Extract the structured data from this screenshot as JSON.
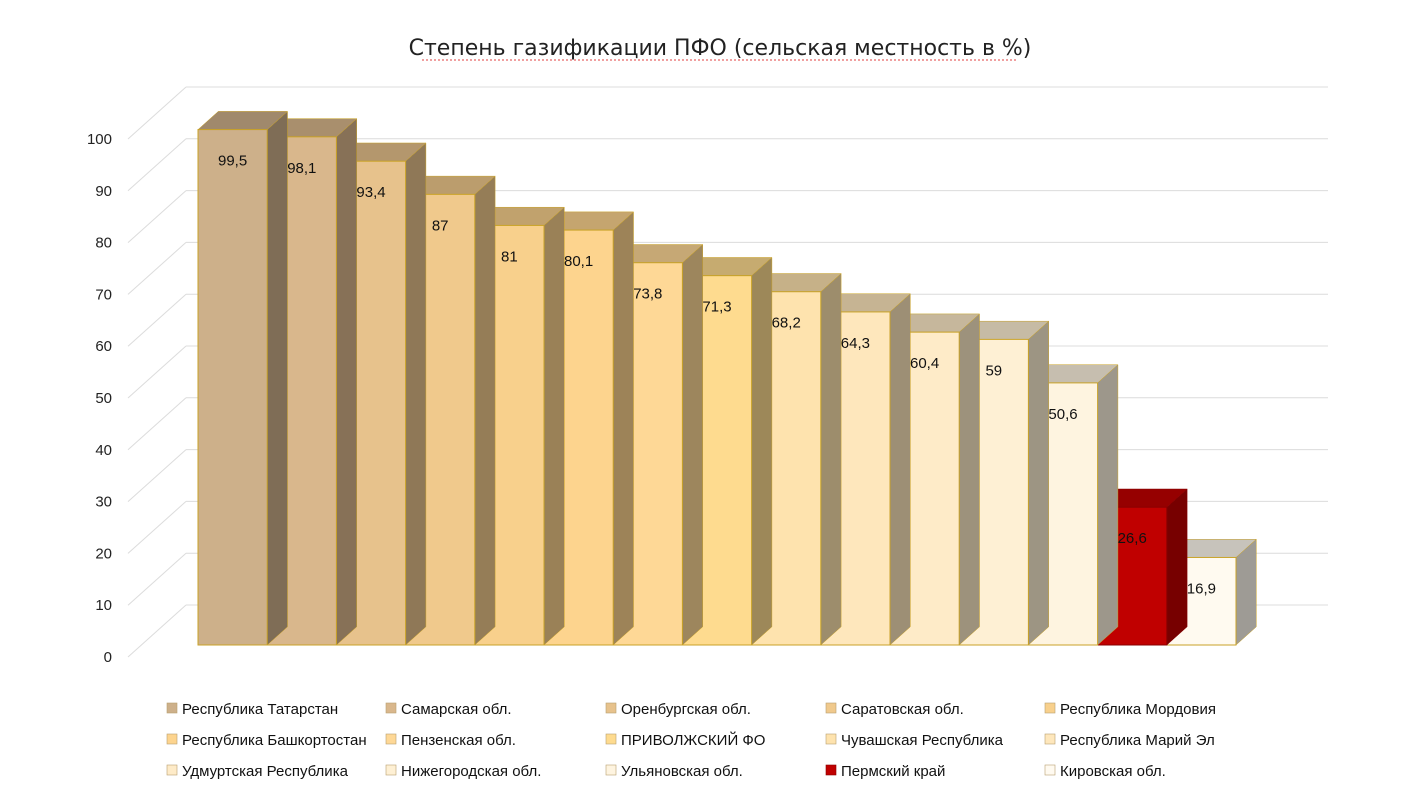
{
  "chart_data": {
    "type": "bar",
    "title": "Степень газификации ПФО (сельская местность в %)",
    "xlabel": "",
    "ylabel": "",
    "ylim": [
      0,
      100
    ],
    "y_ticks": [
      "0",
      "10",
      "20",
      "30",
      "40",
      "50",
      "60",
      "70",
      "80",
      "90",
      "100"
    ],
    "grid": true,
    "legend_position": "bottom",
    "categories": [
      "Республика Татарстан",
      "Самарская обл.",
      "Оренбургская обл.",
      "Саратовская обл.",
      "Республика Мордовия",
      "Республика Башкортостан",
      "Пензенская обл.",
      "ПРИВОЛЖСКИЙ ФО",
      "Чувашская Республика",
      "Республика Марий Эл",
      "Удмуртская Республика",
      "Нижегородская обл.",
      "Ульяновская обл.",
      "Пермский край",
      "Кировская обл."
    ],
    "values": [
      99.5,
      98.1,
      93.4,
      87,
      81,
      80.1,
      73.8,
      71.3,
      68.2,
      64.3,
      60.4,
      59,
      50.6,
      26.6,
      16.9
    ],
    "data_labels": [
      "99,5",
      "98,1",
      "93,4",
      "87",
      "81",
      "80,1",
      "73,8",
      "71,3",
      "68,2",
      "64,3",
      "60,4",
      "59",
      "50,6",
      "26,6",
      "16,9"
    ],
    "colors": [
      "#cdb08a",
      "#d9b78c",
      "#e7c28c",
      "#f0c98c",
      "#f8d08c",
      "#fdd48e",
      "#fed896",
      "#fedb8f",
      "#fee3ae",
      "#fee7bc",
      "#feebc8",
      "#fef0d4",
      "#fef4e0",
      "#c00000",
      "#fffaf0"
    ],
    "highlight_color": "#c00000"
  }
}
